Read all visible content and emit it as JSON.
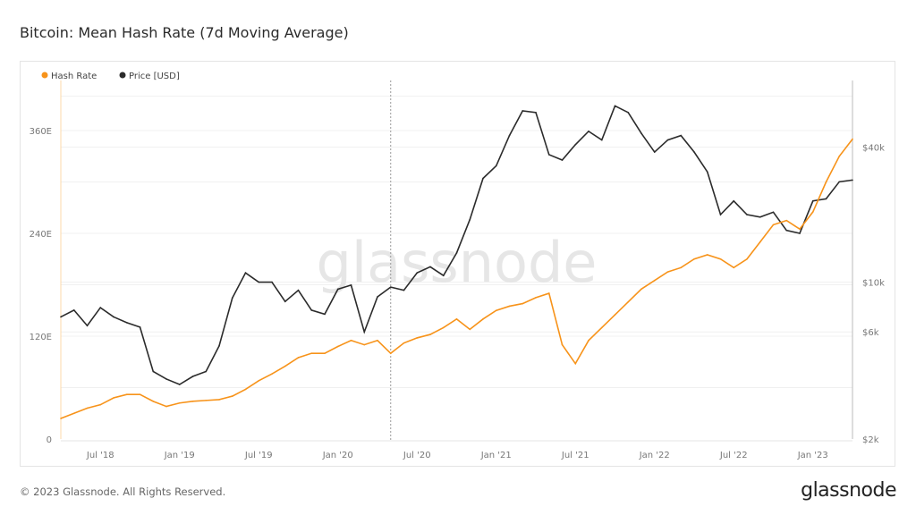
{
  "title": "Bitcoin: Mean Hash Rate (7d Moving Average)",
  "footer": "© 2023 Glassnode. All Rights Reserved.",
  "logo": "glassnode",
  "watermark": "glassnode",
  "colors": {
    "hash_rate": "#f7931a",
    "price": "#2b2b2b",
    "grid": "#f0f0f0",
    "axis_text": "#777777"
  },
  "chart_data": {
    "type": "line",
    "title": "Bitcoin: Mean Hash Rate (7d Moving Average)",
    "legend": {
      "placement": "top-left",
      "entries": [
        "Hash Rate",
        "Price [USD]"
      ]
    },
    "x_range": [
      "2018-04",
      "2023-04"
    ],
    "x_ticks": [
      {
        "date": "2018-07",
        "label": "Jul '18"
      },
      {
        "date": "2019-01",
        "label": "Jan '19"
      },
      {
        "date": "2019-07",
        "label": "Jul '19"
      },
      {
        "date": "2020-01",
        "label": "Jan '20"
      },
      {
        "date": "2020-07",
        "label": "Jul '20"
      },
      {
        "date": "2021-01",
        "label": "Jan '21"
      },
      {
        "date": "2021-07",
        "label": "Jul '21"
      },
      {
        "date": "2022-01",
        "label": "Jan '22"
      },
      {
        "date": "2022-07",
        "label": "Jul '22"
      },
      {
        "date": "2023-01",
        "label": "Jan '23"
      }
    ],
    "marker_line_date": "2020-05",
    "y_left": {
      "unit": "EH/s",
      "range": [
        0,
        400
      ],
      "ticks": [
        {
          "v": 0,
          "label": "0"
        },
        {
          "v": 120,
          "label": "120E"
        },
        {
          "v": 240,
          "label": "240E"
        },
        {
          "v": 360,
          "label": "360E"
        }
      ]
    },
    "y_right": {
      "scale": "log",
      "range": [
        2000,
        70000
      ],
      "ticks": [
        {
          "v": 2000,
          "label": "$2k"
        },
        {
          "v": 6000,
          "label": "$6k"
        },
        {
          "v": 10000,
          "label": "$10k"
        },
        {
          "v": 40000,
          "label": "$40k"
        }
      ]
    },
    "grid": true,
    "x": [
      "2018-04",
      "2018-05",
      "2018-06",
      "2018-07",
      "2018-08",
      "2018-09",
      "2018-10",
      "2018-11",
      "2018-12",
      "2019-01",
      "2019-02",
      "2019-03",
      "2019-04",
      "2019-05",
      "2019-06",
      "2019-07",
      "2019-08",
      "2019-09",
      "2019-10",
      "2019-11",
      "2019-12",
      "2020-01",
      "2020-02",
      "2020-03",
      "2020-04",
      "2020-05",
      "2020-06",
      "2020-07",
      "2020-08",
      "2020-09",
      "2020-10",
      "2020-11",
      "2020-12",
      "2021-01",
      "2021-02",
      "2021-03",
      "2021-04",
      "2021-05",
      "2021-06",
      "2021-07",
      "2021-08",
      "2021-09",
      "2021-10",
      "2021-11",
      "2021-12",
      "2022-01",
      "2022-02",
      "2022-03",
      "2022-04",
      "2022-05",
      "2022-06",
      "2022-07",
      "2022-08",
      "2022-09",
      "2022-10",
      "2022-11",
      "2022-12",
      "2023-01",
      "2023-02",
      "2023-03",
      "2023-04"
    ],
    "series": [
      {
        "name": "Hash Rate",
        "axis": "left",
        "values": [
          24,
          30,
          36,
          40,
          48,
          52,
          52,
          44,
          38,
          42,
          44,
          45,
          46,
          50,
          58,
          68,
          76,
          85,
          95,
          100,
          100,
          108,
          115,
          110,
          115,
          100,
          112,
          118,
          122,
          130,
          140,
          128,
          140,
          150,
          155,
          158,
          165,
          170,
          110,
          88,
          115,
          130,
          145,
          160,
          175,
          185,
          195,
          200,
          210,
          215,
          210,
          200,
          210,
          230,
          250,
          255,
          245,
          265,
          300,
          330,
          350
        ]
      },
      {
        "name": "Price [USD]",
        "axis": "right",
        "values": [
          7000,
          7500,
          6400,
          7700,
          7000,
          6600,
          6300,
          4000,
          3700,
          3500,
          3800,
          4000,
          5200,
          8500,
          11000,
          10000,
          10000,
          8200,
          9200,
          7500,
          7200,
          9300,
          9700,
          6000,
          8600,
          9500,
          9200,
          11000,
          11700,
          10700,
          13500,
          19000,
          29000,
          33000,
          45000,
          58000,
          57000,
          37000,
          35000,
          41000,
          47000,
          43000,
          61000,
          57000,
          46000,
          38000,
          43000,
          45000,
          38000,
          31000,
          20000,
          23000,
          20000,
          19500,
          20500,
          17000,
          16500,
          23000,
          23500,
          28000,
          28500
        ]
      }
    ]
  }
}
